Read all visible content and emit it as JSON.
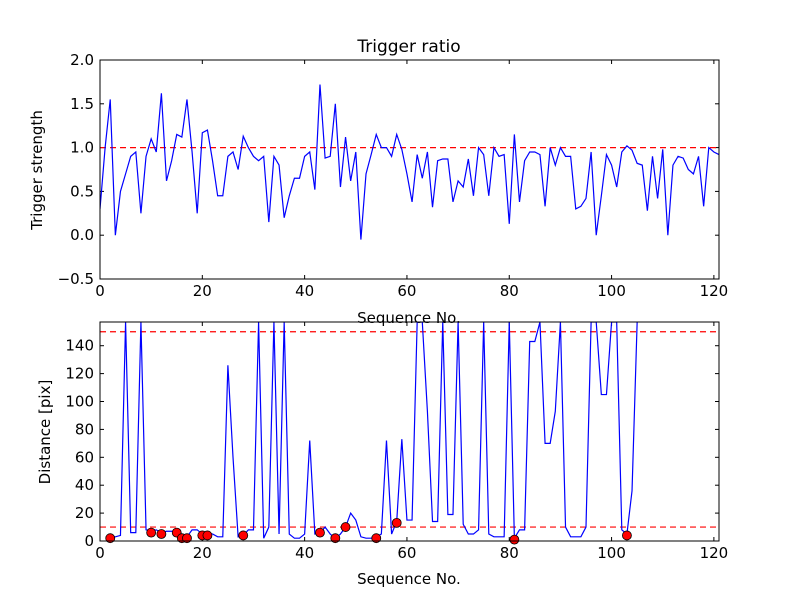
{
  "chart_data": [
    {
      "type": "line",
      "title": "Trigger ratio",
      "xlabel": "Sequence No.",
      "ylabel": "Trigger strength",
      "xlim": [
        0,
        121
      ],
      "ylim": [
        -0.5,
        2.0
      ],
      "xticks": [
        "0",
        "20",
        "40",
        "60",
        "80",
        "100",
        "120"
      ],
      "yticks": [
        "−0.5",
        "0.0",
        "0.5",
        "1.0",
        "1.5",
        "2.0"
      ],
      "grid": false,
      "line_color": "#0000ff",
      "threshold": {
        "value": 1.0,
        "color": "#ff0000",
        "style": "dashed"
      },
      "series": [
        {
          "x": [
            0,
            1,
            2,
            3,
            4,
            5,
            6,
            7,
            8,
            9,
            10,
            11,
            12,
            13,
            14,
            15,
            16,
            17,
            18,
            19,
            20,
            21,
            22,
            23,
            24,
            25,
            26,
            27,
            28,
            29,
            30,
            31,
            32,
            33,
            34,
            35,
            36,
            37,
            38,
            39,
            40,
            41,
            42,
            43,
            44,
            45,
            46,
            47,
            48,
            49,
            50,
            51,
            52,
            53,
            54,
            55,
            56,
            57,
            58,
            59,
            60,
            61,
            62,
            63,
            64,
            65,
            66,
            67,
            68,
            69,
            70,
            71,
            72,
            73,
            74,
            75,
            76,
            77,
            78,
            79,
            80,
            81,
            82,
            83,
            84,
            85,
            86,
            87,
            88,
            89,
            90,
            91,
            92,
            93,
            94,
            95,
            96,
            97,
            98,
            99,
            100,
            101,
            102,
            103,
            104,
            105,
            106,
            107,
            108,
            109,
            110,
            111,
            112,
            113,
            114,
            115,
            116,
            117,
            118,
            119,
            120,
            121
          ],
          "values": [
            0.3,
            1.0,
            1.55,
            0.0,
            0.5,
            0.7,
            0.9,
            0.95,
            0.25,
            0.9,
            1.1,
            0.95,
            1.62,
            0.62,
            0.85,
            1.15,
            1.12,
            1.55,
            0.95,
            0.25,
            1.17,
            1.2,
            0.85,
            0.45,
            0.45,
            0.9,
            0.95,
            0.75,
            1.13,
            1.0,
            0.9,
            0.85,
            0.9,
            0.15,
            0.9,
            0.8,
            0.2,
            0.45,
            0.65,
            0.65,
            0.9,
            0.95,
            0.52,
            1.72,
            0.88,
            0.9,
            1.5,
            0.55,
            1.12,
            0.62,
            0.95,
            -0.05,
            0.7,
            0.92,
            1.15,
            1.0,
            1.0,
            0.9,
            1.15,
            0.98,
            0.7,
            0.38,
            0.92,
            0.65,
            0.95,
            0.32,
            0.85,
            0.87,
            0.87,
            0.38,
            0.62,
            0.55,
            0.87,
            0.45,
            1.0,
            0.92,
            0.45,
            1.0,
            0.9,
            0.92,
            0.13,
            1.15,
            0.38,
            0.85,
            0.95,
            0.95,
            0.92,
            0.33,
            1.0,
            0.8,
            1.0,
            0.9,
            0.9,
            0.3,
            0.33,
            0.42,
            0.95,
            0.0,
            0.45,
            0.92,
            0.8,
            0.55,
            0.95,
            1.02,
            0.97,
            0.82,
            0.8,
            0.28,
            0.9,
            0.42,
            0.98,
            0.0,
            0.8,
            0.9,
            0.88,
            0.75,
            0.7,
            0.9,
            0.33,
            1.0,
            0.95,
            0.92
          ]
        }
      ]
    },
    {
      "type": "line",
      "title": "",
      "xlabel": "Sequence No.",
      "ylabel": "Distance [pix]",
      "xlim": [
        0,
        121
      ],
      "ylim": [
        0,
        157
      ],
      "xticks": [
        "0",
        "20",
        "40",
        "60",
        "80",
        "100",
        "120"
      ],
      "yticks": [
        "0",
        "20",
        "40",
        "60",
        "80",
        "100",
        "120",
        "140"
      ],
      "grid": false,
      "line_color": "#0000ff",
      "thresholds": [
        {
          "value": 150,
          "color": "#ff0000",
          "style": "dashed"
        },
        {
          "value": 10,
          "color": "#ff0000",
          "style": "dashed"
        }
      ],
      "series": [
        {
          "x": [
            2,
            3,
            4,
            5,
            6,
            7,
            8,
            9,
            10,
            11,
            12,
            13,
            14,
            15,
            16,
            17,
            18,
            19,
            20,
            21,
            22,
            23,
            24,
            25,
            26,
            27,
            28,
            29,
            30,
            31,
            32,
            33,
            34,
            35,
            36,
            37,
            38,
            39,
            40,
            41,
            42,
            43,
            44,
            45,
            46,
            47,
            48,
            49,
            50,
            51,
            52,
            53,
            54,
            55,
            56,
            57,
            58,
            59,
            60,
            61,
            62,
            63,
            64,
            65,
            66,
            67,
            68,
            69,
            70,
            71,
            72,
            73,
            74,
            75,
            76,
            77,
            78,
            79,
            80,
            81,
            82,
            83,
            84,
            85,
            86,
            87,
            88,
            89,
            90,
            91,
            92,
            93,
            94,
            95,
            96,
            97,
            98,
            99,
            100,
            101,
            102,
            103,
            104,
            105
          ],
          "values": [
            2,
            3,
            4,
            157,
            6,
            6,
            157,
            8,
            7,
            8,
            6,
            7,
            7,
            6,
            3,
            3,
            8,
            8,
            5,
            5,
            5,
            3,
            3,
            126,
            60,
            3,
            4,
            8,
            8,
            157,
            2,
            10,
            157,
            5,
            157,
            5,
            2,
            2,
            5,
            72,
            5,
            6,
            10,
            5,
            2,
            5,
            10,
            20,
            15,
            3,
            2,
            2,
            3,
            5,
            72,
            5,
            14,
            73,
            15,
            15,
            157,
            157,
            93,
            14,
            14,
            157,
            19,
            19,
            157,
            12,
            5,
            5,
            8,
            157,
            5,
            3,
            3,
            3,
            157,
            2,
            8,
            8,
            143,
            143,
            157,
            70,
            70,
            93,
            157,
            10,
            3,
            3,
            3,
            10,
            157,
            157,
            105,
            105,
            157,
            157,
            8,
            5,
            36,
            157
          ],
          "color": "#0000ff"
        },
        {
          "type": "scatter",
          "marker": "circle",
          "color": "#ff0000",
          "x": [
            2,
            10,
            12,
            15,
            16,
            17,
            20,
            21,
            28,
            43,
            46,
            48,
            54,
            58,
            81,
            103
          ],
          "values": [
            2,
            6,
            5,
            6,
            2,
            2,
            4,
            4,
            4,
            6,
            2,
            10,
            2,
            13,
            1,
            4
          ]
        }
      ]
    }
  ]
}
